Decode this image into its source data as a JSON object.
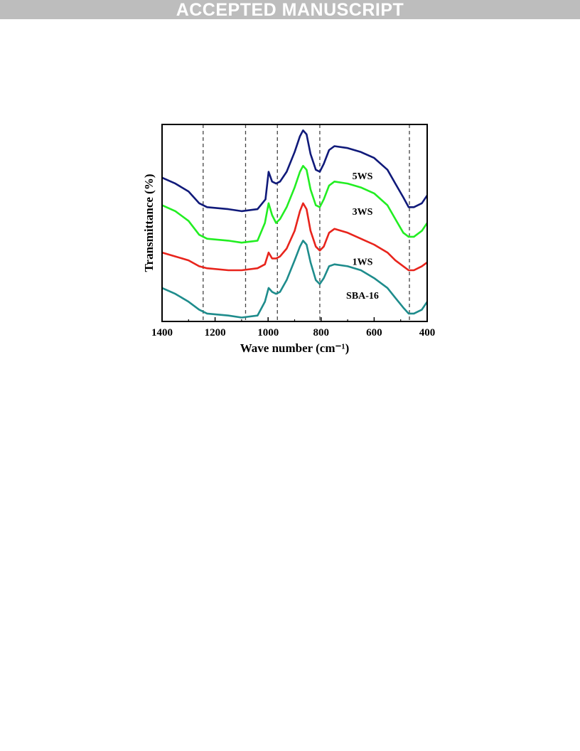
{
  "banner": {
    "text": "ACCEPTED MANUSCRIPT"
  },
  "chart_data": {
    "type": "line",
    "xlabel": "Wave number (cm⁻¹)",
    "ylabel": "Transmittance (%)",
    "xlim": [
      1400,
      400
    ],
    "x_ticks": [
      1400,
      1200,
      1000,
      800,
      600,
      400
    ],
    "y_ticks_shown": false,
    "grid": false,
    "reference_lines_x": [
      1245,
      1085,
      965,
      805,
      467
    ],
    "series": [
      {
        "name": "5WS",
        "color": "#101a7a",
        "label_x": 585,
        "points": [
          [
            1400,
            0.73
          ],
          [
            1350,
            0.7
          ],
          [
            1300,
            0.66
          ],
          [
            1260,
            0.6
          ],
          [
            1230,
            0.58
          ],
          [
            1150,
            0.57
          ],
          [
            1100,
            0.56
          ],
          [
            1040,
            0.57
          ],
          [
            1010,
            0.62
          ],
          [
            998,
            0.76
          ],
          [
            985,
            0.71
          ],
          [
            970,
            0.7
          ],
          [
            955,
            0.71
          ],
          [
            930,
            0.76
          ],
          [
            900,
            0.86
          ],
          [
            880,
            0.94
          ],
          [
            868,
            0.97
          ],
          [
            855,
            0.95
          ],
          [
            840,
            0.85
          ],
          [
            820,
            0.77
          ],
          [
            805,
            0.76
          ],
          [
            790,
            0.8
          ],
          [
            770,
            0.87
          ],
          [
            750,
            0.89
          ],
          [
            700,
            0.88
          ],
          [
            650,
            0.86
          ],
          [
            600,
            0.83
          ],
          [
            550,
            0.77
          ],
          [
            520,
            0.7
          ],
          [
            490,
            0.63
          ],
          [
            470,
            0.58
          ],
          [
            450,
            0.58
          ],
          [
            420,
            0.6
          ],
          [
            400,
            0.64
          ]
        ]
      },
      {
        "name": "3WS",
        "color": "#22ee22",
        "label_x": 585,
        "points": [
          [
            1400,
            0.59
          ],
          [
            1350,
            0.56
          ],
          [
            1300,
            0.51
          ],
          [
            1260,
            0.44
          ],
          [
            1230,
            0.42
          ],
          [
            1150,
            0.41
          ],
          [
            1100,
            0.4
          ],
          [
            1040,
            0.41
          ],
          [
            1012,
            0.5
          ],
          [
            998,
            0.6
          ],
          [
            985,
            0.54
          ],
          [
            970,
            0.5
          ],
          [
            955,
            0.52
          ],
          [
            930,
            0.58
          ],
          [
            900,
            0.68
          ],
          [
            880,
            0.76
          ],
          [
            868,
            0.79
          ],
          [
            855,
            0.77
          ],
          [
            840,
            0.67
          ],
          [
            820,
            0.59
          ],
          [
            805,
            0.58
          ],
          [
            790,
            0.62
          ],
          [
            770,
            0.69
          ],
          [
            750,
            0.71
          ],
          [
            700,
            0.7
          ],
          [
            650,
            0.68
          ],
          [
            600,
            0.65
          ],
          [
            550,
            0.59
          ],
          [
            520,
            0.52
          ],
          [
            490,
            0.45
          ],
          [
            470,
            0.43
          ],
          [
            450,
            0.43
          ],
          [
            420,
            0.46
          ],
          [
            400,
            0.5
          ]
        ]
      },
      {
        "name": "1WS",
        "color": "#e8241c",
        "label_x": 585,
        "points": [
          [
            1400,
            0.35
          ],
          [
            1350,
            0.33
          ],
          [
            1300,
            0.31
          ],
          [
            1260,
            0.28
          ],
          [
            1230,
            0.27
          ],
          [
            1150,
            0.26
          ],
          [
            1100,
            0.26
          ],
          [
            1040,
            0.27
          ],
          [
            1012,
            0.29
          ],
          [
            998,
            0.35
          ],
          [
            985,
            0.32
          ],
          [
            970,
            0.32
          ],
          [
            955,
            0.33
          ],
          [
            930,
            0.37
          ],
          [
            900,
            0.46
          ],
          [
            880,
            0.56
          ],
          [
            868,
            0.6
          ],
          [
            855,
            0.57
          ],
          [
            840,
            0.46
          ],
          [
            820,
            0.38
          ],
          [
            805,
            0.36
          ],
          [
            790,
            0.38
          ],
          [
            770,
            0.45
          ],
          [
            750,
            0.47
          ],
          [
            700,
            0.45
          ],
          [
            650,
            0.42
          ],
          [
            600,
            0.39
          ],
          [
            550,
            0.35
          ],
          [
            520,
            0.31
          ],
          [
            490,
            0.28
          ],
          [
            470,
            0.26
          ],
          [
            450,
            0.26
          ],
          [
            420,
            0.28
          ],
          [
            400,
            0.3
          ]
        ]
      },
      {
        "name": "SBA-16",
        "color": "#1e8c8c",
        "label_x": 585,
        "points": [
          [
            1400,
            0.17
          ],
          [
            1350,
            0.14
          ],
          [
            1300,
            0.1
          ],
          [
            1260,
            0.06
          ],
          [
            1230,
            0.04
          ],
          [
            1150,
            0.03
          ],
          [
            1100,
            0.02
          ],
          [
            1040,
            0.03
          ],
          [
            1012,
            0.1
          ],
          [
            998,
            0.17
          ],
          [
            985,
            0.15
          ],
          [
            970,
            0.14
          ],
          [
            955,
            0.15
          ],
          [
            930,
            0.21
          ],
          [
            900,
            0.31
          ],
          [
            880,
            0.38
          ],
          [
            868,
            0.41
          ],
          [
            855,
            0.39
          ],
          [
            840,
            0.3
          ],
          [
            820,
            0.21
          ],
          [
            805,
            0.19
          ],
          [
            790,
            0.22
          ],
          [
            770,
            0.28
          ],
          [
            750,
            0.29
          ],
          [
            700,
            0.28
          ],
          [
            650,
            0.26
          ],
          [
            600,
            0.22
          ],
          [
            550,
            0.17
          ],
          [
            520,
            0.12
          ],
          [
            490,
            0.07
          ],
          [
            470,
            0.04
          ],
          [
            450,
            0.04
          ],
          [
            420,
            0.06
          ],
          [
            400,
            0.1
          ]
        ]
      }
    ]
  }
}
